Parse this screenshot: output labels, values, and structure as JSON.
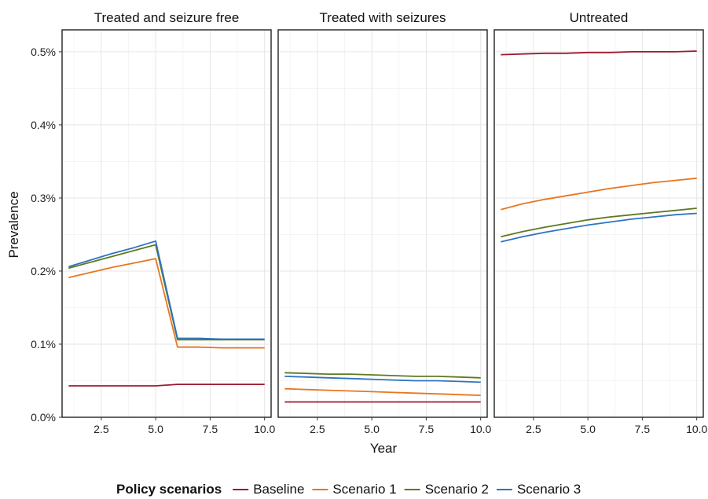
{
  "chart_data": {
    "type": "line",
    "facets": [
      "Treated and seizure free",
      "Treated with seizures",
      "Untreated"
    ],
    "xlabel": "Year",
    "ylabel": "Prevalence",
    "xlim": [
      0.7,
      10.3
    ],
    "ylim": [
      0,
      0.53
    ],
    "x_ticks": [
      2.5,
      5.0,
      7.5,
      10.0
    ],
    "x_tick_labels": [
      "2.5",
      "5.0",
      "7.5",
      "10.0"
    ],
    "y_ticks": [
      0,
      0.1,
      0.2,
      0.3,
      0.4,
      0.5
    ],
    "y_tick_labels": [
      "0.0%",
      "0.1%",
      "0.2%",
      "0.3%",
      "0.4%",
      "0.5%"
    ],
    "grid": true,
    "legend": {
      "title": "Policy scenarios",
      "position": "bottom",
      "entries": [
        "Baseline",
        "Scenario 1",
        "Scenario 2",
        "Scenario 3"
      ]
    },
    "colors": {
      "Baseline": "#9b1b30",
      "Scenario 1": "#e8761f",
      "Scenario 2": "#5e7a1d",
      "Scenario 3": "#2f73c4"
    },
    "x": [
      1,
      2,
      3,
      4,
      5,
      6,
      7,
      8,
      9,
      10
    ],
    "panels": [
      {
        "facet": "Treated and seizure free",
        "series": [
          {
            "name": "Baseline",
            "values": [
              0.043,
              0.043,
              0.043,
              0.043,
              0.043,
              0.045,
              0.045,
              0.045,
              0.045,
              0.045
            ]
          },
          {
            "name": "Scenario 1",
            "values": [
              0.191,
              0.198,
              0.205,
              0.211,
              0.217,
              0.096,
              0.096,
              0.095,
              0.095,
              0.095
            ]
          },
          {
            "name": "Scenario 2",
            "values": [
              0.204,
              0.212,
              0.22,
              0.228,
              0.236,
              0.106,
              0.106,
              0.106,
              0.106,
              0.106
            ]
          },
          {
            "name": "Scenario 3",
            "values": [
              0.206,
              0.215,
              0.224,
              0.232,
              0.241,
              0.108,
              0.108,
              0.107,
              0.107,
              0.107
            ]
          }
        ]
      },
      {
        "facet": "Treated with seizures",
        "series": [
          {
            "name": "Baseline",
            "values": [
              0.021,
              0.021,
              0.021,
              0.021,
              0.021,
              0.021,
              0.021,
              0.021,
              0.021,
              0.021
            ]
          },
          {
            "name": "Scenario 1",
            "values": [
              0.039,
              0.038,
              0.037,
              0.036,
              0.035,
              0.034,
              0.033,
              0.032,
              0.031,
              0.03
            ]
          },
          {
            "name": "Scenario 2",
            "values": [
              0.061,
              0.06,
              0.059,
              0.059,
              0.058,
              0.057,
              0.056,
              0.056,
              0.055,
              0.054
            ]
          },
          {
            "name": "Scenario 3",
            "values": [
              0.056,
              0.055,
              0.054,
              0.053,
              0.052,
              0.051,
              0.05,
              0.05,
              0.049,
              0.048
            ]
          }
        ]
      },
      {
        "facet": "Untreated",
        "series": [
          {
            "name": "Baseline",
            "values": [
              0.496,
              0.497,
              0.498,
              0.498,
              0.499,
              0.499,
              0.5,
              0.5,
              0.5,
              0.501
            ]
          },
          {
            "name": "Scenario 1",
            "values": [
              0.284,
              0.292,
              0.298,
              0.303,
              0.308,
              0.313,
              0.317,
              0.321,
              0.324,
              0.327
            ]
          },
          {
            "name": "Scenario 2",
            "values": [
              0.247,
              0.254,
              0.26,
              0.265,
              0.27,
              0.274,
              0.277,
              0.28,
              0.283,
              0.286
            ]
          },
          {
            "name": "Scenario 3",
            "values": [
              0.24,
              0.247,
              0.253,
              0.258,
              0.263,
              0.267,
              0.271,
              0.274,
              0.277,
              0.279
            ]
          }
        ]
      }
    ]
  }
}
